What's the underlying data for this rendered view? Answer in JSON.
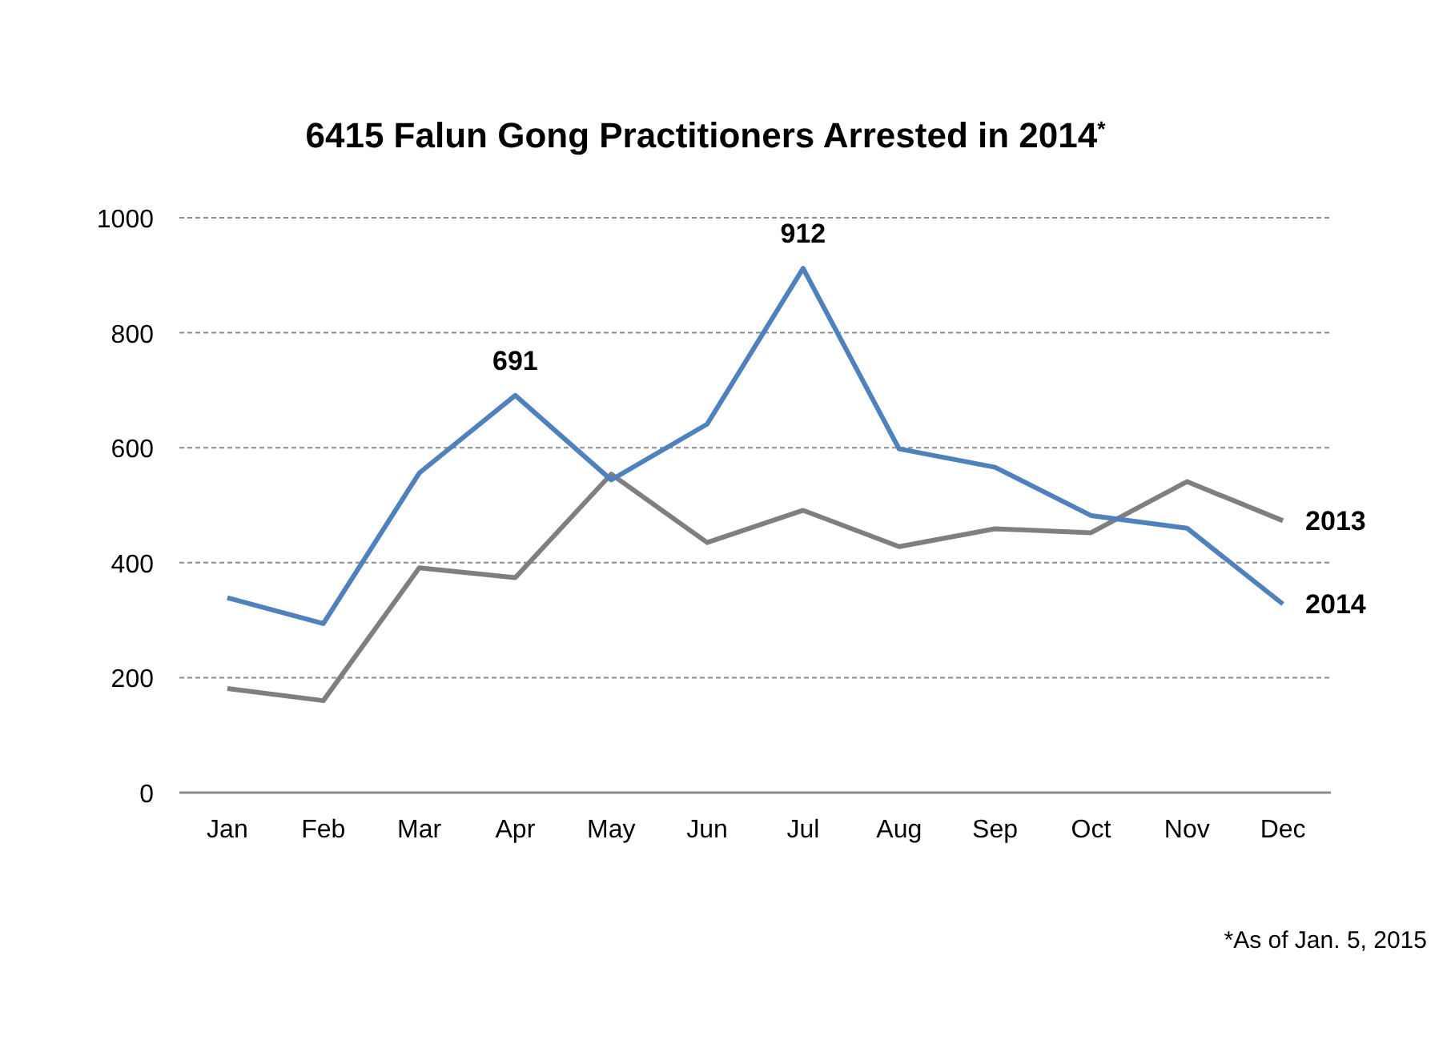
{
  "chart_data": {
    "type": "line",
    "title": "6415 Falun Gong Practitioners Arrested in 2014$^{*}$",
    "categories": [
      "Jan",
      "Feb",
      "Mar",
      "Apr",
      "May",
      "Jun",
      "Jul",
      "Aug",
      "Sep",
      "Oct",
      "Nov",
      "Dec"
    ],
    "series": [
      {
        "name": "2013",
        "color": "#7f7f7f",
        "values": [
          181,
          160,
          391,
          374,
          554,
          435,
          491,
          428,
          459,
          452,
          541,
          473
        ]
      },
      {
        "name": "2014",
        "color": "#4f81bd",
        "values": [
          339,
          294,
          556,
          691,
          544,
          641,
          912,
          598,
          566,
          482,
          460,
          328
        ],
        "value_labels": [
          null,
          null,
          null,
          "691",
          null,
          null,
          "912",
          null,
          null,
          null,
          null,
          null
        ]
      }
    ],
    "ylim": [
      0,
      1000
    ],
    "yticks": [
      0,
      200,
      400,
      600,
      800,
      1000
    ],
    "grid": "y",
    "legend": false,
    "marker": "none",
    "line_style": "solid",
    "annotations": [
      "*As of Jan. 5, 2015"
    ]
  }
}
